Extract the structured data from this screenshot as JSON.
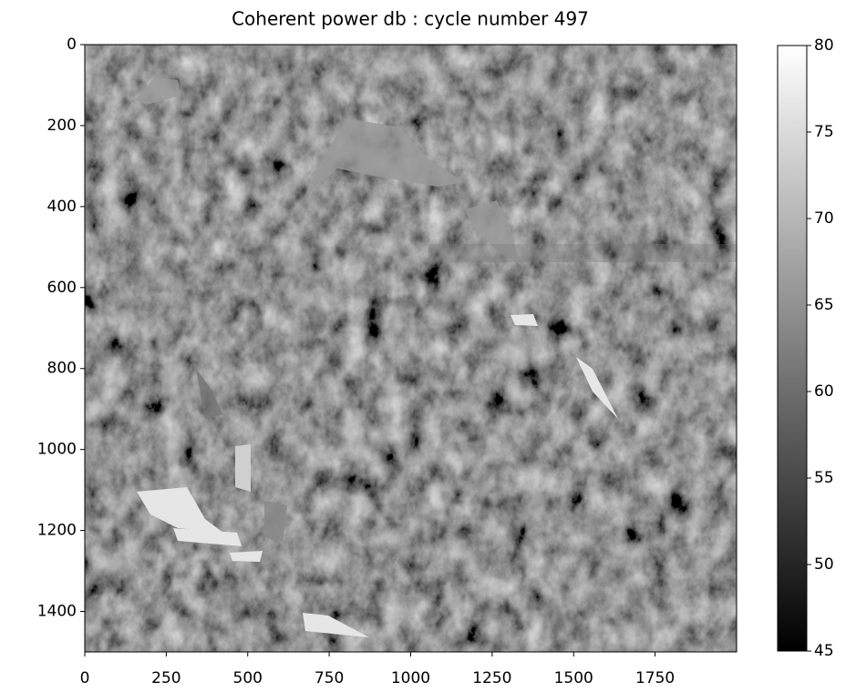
{
  "chart_data": {
    "type": "image",
    "title": "Coherent power db : cycle number 497",
    "xlim": [
      0,
      2000
    ],
    "xticks": [
      0,
      250,
      500,
      750,
      1000,
      1250,
      1500,
      1750
    ],
    "ylim": [
      1500,
      0
    ],
    "yticks": [
      0,
      200,
      400,
      600,
      800,
      1000,
      1200,
      1400
    ],
    "colormap": "gray",
    "colorbar": {
      "clim": [
        45,
        80
      ],
      "ticks": [
        45,
        50,
        55,
        60,
        65,
        70,
        75,
        80
      ]
    }
  }
}
